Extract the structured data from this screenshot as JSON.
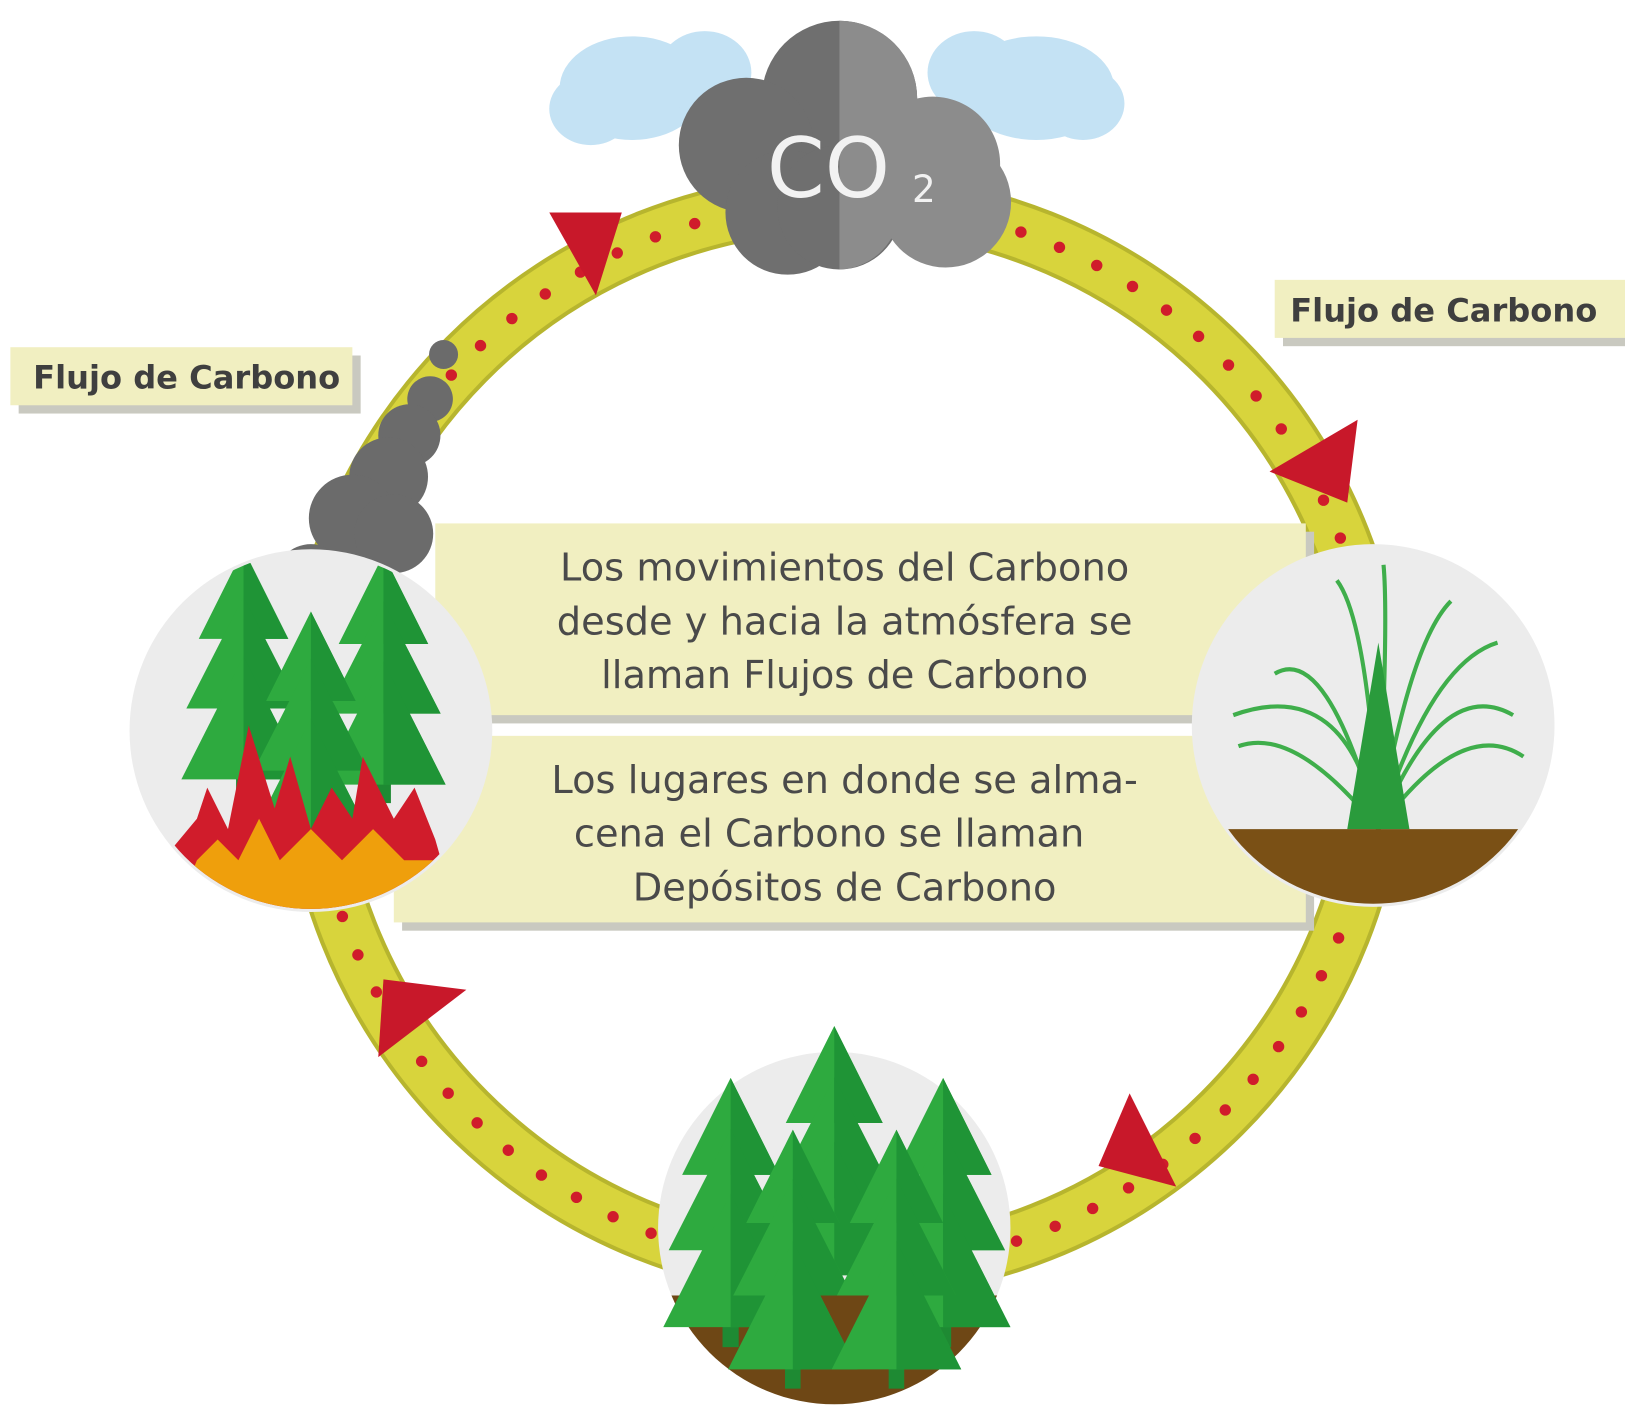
{
  "cloud": {
    "label": "CO",
    "subscript": "2"
  },
  "flux_labels": {
    "left": "Flujo de Carbono",
    "right": "Flujo de Carbono"
  },
  "paragraphs": {
    "flows": {
      "lines": [
        "Los movimientos del Carbono",
        "desde y hacia la atmósfera se",
        "llaman Flujos de Carbono"
      ]
    },
    "pools": {
      "lines": [
        "Los lugares en donde se alma-",
        "cena el Carbono se llaman",
        "Depósitos de Carbono"
      ]
    }
  }
}
